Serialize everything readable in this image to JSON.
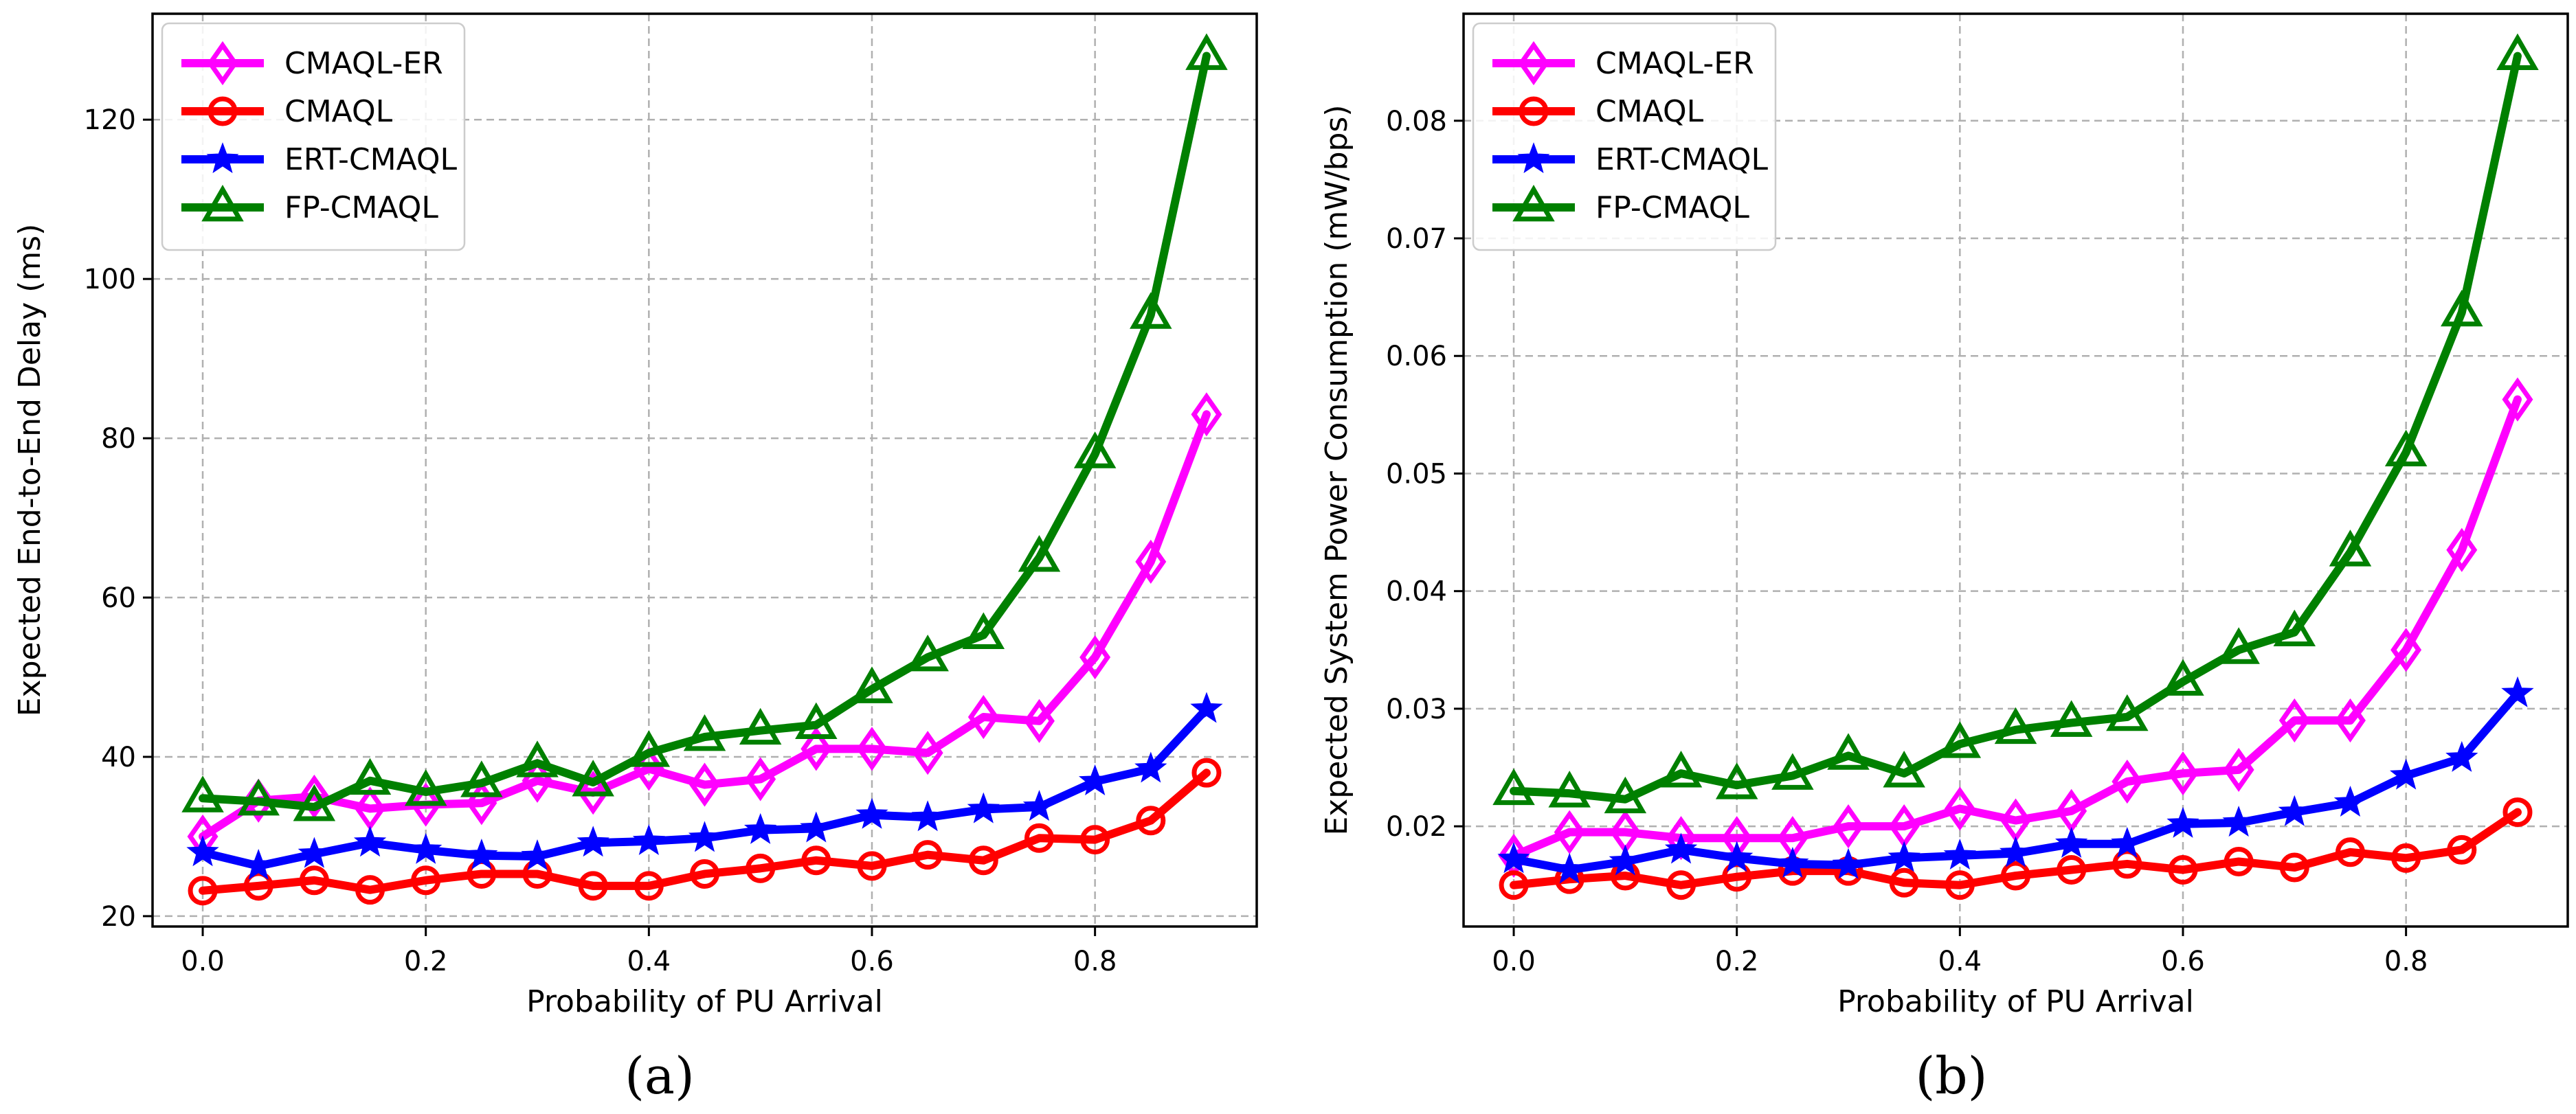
{
  "chart_data": [
    {
      "type": "line",
      "panel_label": "(a)",
      "xlabel": "Probability of PU Arrival",
      "ylabel": "Expected End-to-End Delay (ms)",
      "xlim": [
        -0.045,
        0.945
      ],
      "ylim": [
        18.7,
        133.3
      ],
      "xticks": [
        0.0,
        0.2,
        0.4,
        0.6,
        0.8
      ],
      "xtick_labels": [
        "0.0",
        "0.2",
        "0.4",
        "0.6",
        "0.8"
      ],
      "yticks": [
        20,
        40,
        60,
        80,
        100,
        120
      ],
      "ytick_labels": [
        "20",
        "40",
        "60",
        "80",
        "100",
        "120"
      ],
      "grid": true,
      "legend_position": "top-left",
      "x": [
        0.0,
        0.05,
        0.1,
        0.15,
        0.2,
        0.25,
        0.3,
        0.35,
        0.4,
        0.45,
        0.5,
        0.55,
        0.6,
        0.65,
        0.7,
        0.75,
        0.8,
        0.85,
        0.9
      ],
      "series": [
        {
          "name": "CMAQL-ER",
          "color": "#ff00ff",
          "marker": "diamond",
          "values": [
            30.0,
            34.5,
            35.0,
            33.5,
            34.0,
            34.2,
            37.0,
            35.5,
            38.5,
            36.5,
            37.2,
            41.0,
            41.0,
            40.5,
            45.0,
            44.5,
            52.5,
            64.5,
            83.0
          ]
        },
        {
          "name": "CMAQL",
          "color": "#ff0000",
          "marker": "circle",
          "values": [
            23.2,
            23.8,
            24.5,
            23.3,
            24.5,
            25.3,
            25.3,
            23.8,
            23.8,
            25.3,
            26.0,
            27.0,
            26.3,
            27.7,
            27.0,
            29.8,
            29.6,
            32.0,
            38.0
          ]
        },
        {
          "name": "ERT-CMAQL",
          "color": "#0000ff",
          "marker": "star",
          "values": [
            28.0,
            26.3,
            27.8,
            29.2,
            28.3,
            27.6,
            27.5,
            29.2,
            29.4,
            29.8,
            30.8,
            31.0,
            32.7,
            32.4,
            33.4,
            33.7,
            36.9,
            38.5,
            46.0
          ]
        },
        {
          "name": "FP-CMAQL",
          "color": "#008000",
          "marker": "triangle",
          "values": [
            34.8,
            34.4,
            33.7,
            37.0,
            35.6,
            36.7,
            39.2,
            36.8,
            40.5,
            42.5,
            43.3,
            44.0,
            48.5,
            52.5,
            55.3,
            65.0,
            78.0,
            95.5,
            128.0
          ]
        }
      ]
    },
    {
      "type": "line",
      "panel_label": "(b)",
      "xlabel": "Probability of PU Arrival",
      "ylabel": "Expected System Power Consumption (mW/bps)",
      "xlim": [
        -0.045,
        0.945
      ],
      "ylim": [
        0.01148,
        0.0891
      ],
      "xticks": [
        0.0,
        0.2,
        0.4,
        0.6,
        0.8
      ],
      "xtick_labels": [
        "0.0",
        "0.2",
        "0.4",
        "0.6",
        "0.8"
      ],
      "yticks": [
        0.02,
        0.03,
        0.04,
        0.05,
        0.06,
        0.07,
        0.08
      ],
      "ytick_labels": [
        "0.02",
        "0.03",
        "0.04",
        "0.05",
        "0.06",
        "0.07",
        "0.08"
      ],
      "grid": true,
      "legend_position": "top-left",
      "x": [
        0.0,
        0.05,
        0.1,
        0.15,
        0.2,
        0.25,
        0.3,
        0.35,
        0.4,
        0.45,
        0.5,
        0.55,
        0.6,
        0.65,
        0.7,
        0.75,
        0.8,
        0.85,
        0.9
      ],
      "series": [
        {
          "name": "CMAQL-ER",
          "color": "#ff00ff",
          "marker": "diamond",
          "values": [
            0.0175,
            0.0195,
            0.0195,
            0.019,
            0.019,
            0.019,
            0.02,
            0.02,
            0.0215,
            0.0205,
            0.0213,
            0.0238,
            0.0245,
            0.0248,
            0.029,
            0.029,
            0.035,
            0.0435,
            0.0563
          ]
        },
        {
          "name": "CMAQL",
          "color": "#ff0000",
          "marker": "circle",
          "values": [
            0.015,
            0.0155,
            0.0158,
            0.015,
            0.0157,
            0.0162,
            0.0162,
            0.0152,
            0.015,
            0.0158,
            0.0163,
            0.0168,
            0.0163,
            0.017,
            0.0165,
            0.0178,
            0.0173,
            0.018,
            0.0212
          ]
        },
        {
          "name": "ERT-CMAQL",
          "color": "#0000ff",
          "marker": "star",
          "values": [
            0.0172,
            0.0163,
            0.017,
            0.018,
            0.0173,
            0.0168,
            0.0167,
            0.0173,
            0.0175,
            0.0177,
            0.0185,
            0.0185,
            0.0202,
            0.0203,
            0.0212,
            0.022,
            0.0243,
            0.0258,
            0.0313
          ]
        },
        {
          "name": "FP-CMAQL",
          "color": "#008000",
          "marker": "triangle",
          "values": [
            0.023,
            0.0228,
            0.0223,
            0.0245,
            0.0235,
            0.0243,
            0.026,
            0.0245,
            0.027,
            0.0282,
            0.0288,
            0.0293,
            0.0323,
            0.035,
            0.0365,
            0.0433,
            0.0518,
            0.0637,
            0.0855
          ]
        }
      ]
    }
  ]
}
